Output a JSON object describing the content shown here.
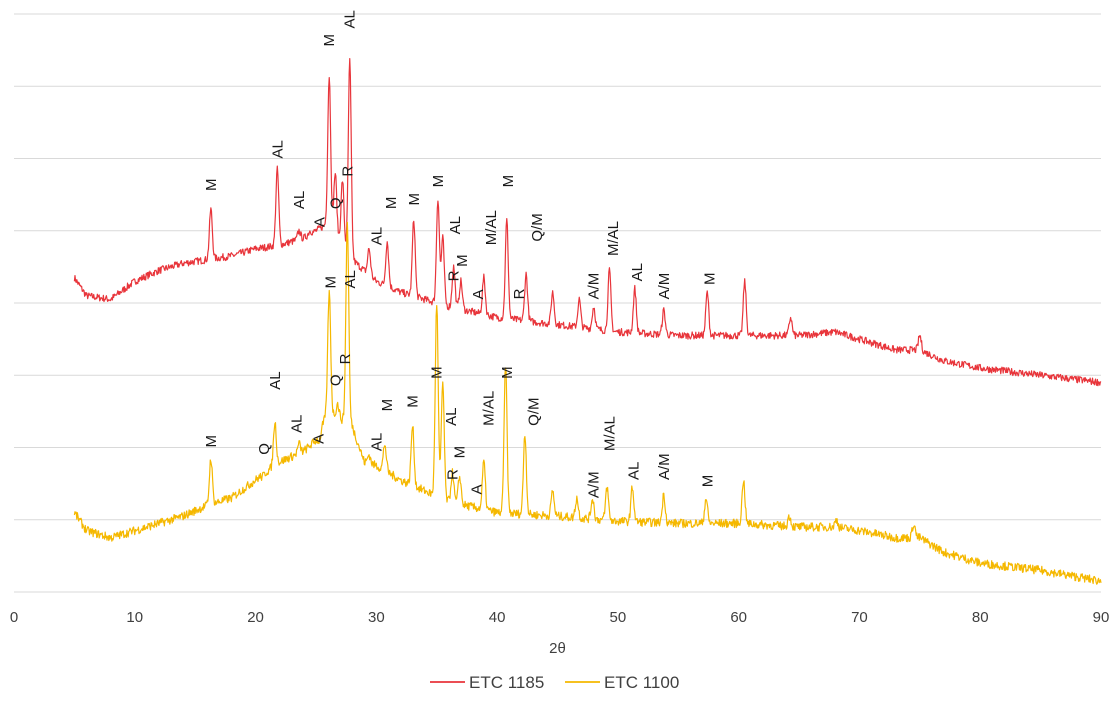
{
  "chart_data": {
    "type": "line",
    "xlabel": "2θ",
    "ylabel": "",
    "xlim": [
      0,
      90
    ],
    "ylim": [
      0,
      8
    ],
    "x_ticks": [
      0,
      10,
      20,
      30,
      40,
      50,
      60,
      70,
      80,
      90
    ],
    "y_ticks_shown": false,
    "grid": "horizontal",
    "legend_position": "bottom",
    "series": [
      {
        "name": "ETC 1185",
        "color": "#e8353b",
        "baseline_points": [
          [
            5,
            4.35
          ],
          [
            6,
            4.1
          ],
          [
            8,
            4.05
          ],
          [
            10,
            4.3
          ],
          [
            12,
            4.45
          ],
          [
            14,
            4.55
          ],
          [
            16,
            4.6
          ],
          [
            18,
            4.65
          ],
          [
            20,
            4.75
          ],
          [
            22,
            4.8
          ],
          [
            24,
            4.9
          ],
          [
            26,
            5.1
          ],
          [
            28,
            4.6
          ],
          [
            30,
            4.3
          ],
          [
            32,
            4.15
          ],
          [
            34,
            4.05
          ],
          [
            36,
            3.95
          ],
          [
            40,
            3.8
          ],
          [
            45,
            3.7
          ],
          [
            50,
            3.6
          ],
          [
            55,
            3.55
          ],
          [
            60,
            3.55
          ],
          [
            65,
            3.55
          ],
          [
            68,
            3.6
          ],
          [
            70,
            3.5
          ],
          [
            73,
            3.35
          ],
          [
            75,
            3.35
          ],
          [
            77,
            3.2
          ],
          [
            80,
            3.1
          ],
          [
            85,
            3.0
          ],
          [
            90,
            2.9
          ]
        ],
        "peaks": [
          [
            16.3,
            5.3
          ],
          [
            21.8,
            5.85
          ],
          [
            23.6,
            5.0
          ],
          [
            24.5,
            5.0
          ],
          [
            26.1,
            7.15
          ],
          [
            26.6,
            5.8
          ],
          [
            27.2,
            5.7
          ],
          [
            27.8,
            7.35
          ],
          [
            29.4,
            4.75
          ],
          [
            30.9,
            4.85
          ],
          [
            33.1,
            5.15
          ],
          [
            35.1,
            5.45
          ],
          [
            35.5,
            4.9
          ],
          [
            36.4,
            4.5
          ],
          [
            37.0,
            4.3
          ],
          [
            38.9,
            4.35
          ],
          [
            40.8,
            5.15
          ],
          [
            42.4,
            4.4
          ],
          [
            44.6,
            4.15
          ],
          [
            46.8,
            4.05
          ],
          [
            48.0,
            3.95
          ],
          [
            49.3,
            4.45
          ],
          [
            51.4,
            4.2
          ],
          [
            53.8,
            3.9
          ],
          [
            57.4,
            4.15
          ],
          [
            60.5,
            4.3
          ],
          [
            64.3,
            3.8
          ],
          [
            75.0,
            3.55
          ]
        ],
        "noise": 0.05
      },
      {
        "name": "ETC 1100",
        "color": "#f5b800",
        "baseline_points": [
          [
            5,
            1.1
          ],
          [
            6,
            0.85
          ],
          [
            8,
            0.75
          ],
          [
            10,
            0.85
          ],
          [
            12,
            0.95
          ],
          [
            14,
            1.05
          ],
          [
            16,
            1.2
          ],
          [
            18,
            1.3
          ],
          [
            20,
            1.55
          ],
          [
            22,
            1.8
          ],
          [
            24,
            1.95
          ],
          [
            25,
            2.1
          ],
          [
            26,
            2.5
          ],
          [
            28,
            2.3
          ],
          [
            29,
            1.8
          ],
          [
            30,
            1.75
          ],
          [
            32,
            1.55
          ],
          [
            34,
            1.4
          ],
          [
            36,
            1.25
          ],
          [
            40,
            1.1
          ],
          [
            45,
            1.05
          ],
          [
            50,
            0.98
          ],
          [
            55,
            0.95
          ],
          [
            60,
            0.95
          ],
          [
            65,
            0.9
          ],
          [
            68,
            0.9
          ],
          [
            70,
            0.85
          ],
          [
            73,
            0.75
          ],
          [
            75,
            0.75
          ],
          [
            77,
            0.55
          ],
          [
            80,
            0.4
          ],
          [
            85,
            0.3
          ],
          [
            90,
            0.15
          ]
        ],
        "peaks": [
          [
            16.3,
            1.85
          ],
          [
            20.6,
            1.6
          ],
          [
            21.6,
            2.35
          ],
          [
            23.6,
            2.05
          ],
          [
            25.3,
            2.1
          ],
          [
            26.1,
            4.15
          ],
          [
            26.8,
            2.6
          ],
          [
            27.6,
            5.1
          ],
          [
            29.4,
            1.9
          ],
          [
            30.7,
            2.05
          ],
          [
            33.0,
            2.3
          ],
          [
            35.0,
            4.0
          ],
          [
            35.5,
            2.9
          ],
          [
            36.3,
            1.65
          ],
          [
            36.9,
            1.6
          ],
          [
            38.9,
            1.8
          ],
          [
            40.7,
            3.15
          ],
          [
            42.3,
            2.2
          ],
          [
            44.6,
            1.4
          ],
          [
            46.6,
            1.3
          ],
          [
            47.9,
            1.3
          ],
          [
            49.1,
            1.45
          ],
          [
            51.2,
            1.45
          ],
          [
            53.8,
            1.35
          ],
          [
            57.3,
            1.3
          ],
          [
            60.4,
            1.55
          ],
          [
            64.2,
            1.05
          ],
          [
            68.1,
            1.0
          ],
          [
            74.5,
            0.95
          ]
        ],
        "noise": 0.06
      }
    ],
    "annotations_top": [
      {
        "text": "M",
        "x": 16.3,
        "y": 5.55
      },
      {
        "text": "AL",
        "x": 21.8,
        "y": 6.0
      },
      {
        "text": "AL",
        "x": 23.6,
        "y": 5.3
      },
      {
        "text": "A",
        "x": 25.3,
        "y": 5.05
      },
      {
        "text": "M",
        "x": 26.1,
        "y": 7.55
      },
      {
        "text": "Q",
        "x": 26.6,
        "y": 5.3
      },
      {
        "text": "R",
        "x": 27.6,
        "y": 5.75
      },
      {
        "text": "AL",
        "x": 27.8,
        "y": 7.8
      },
      {
        "text": "AL",
        "x": 30.0,
        "y": 4.8
      },
      {
        "text": "M",
        "x": 31.2,
        "y": 5.3
      },
      {
        "text": "M",
        "x": 33.1,
        "y": 5.35
      },
      {
        "text": "M",
        "x": 35.1,
        "y": 5.6
      },
      {
        "text": "AL",
        "x": 36.5,
        "y": 4.95
      },
      {
        "text": "M",
        "x": 37.1,
        "y": 4.5
      },
      {
        "text": "R",
        "x": 36.4,
        "y": 4.3
      },
      {
        "text": "A",
        "x": 38.4,
        "y": 4.05
      },
      {
        "text": "M/AL",
        "x": 39.5,
        "y": 4.8
      },
      {
        "text": "M",
        "x": 40.9,
        "y": 5.6
      },
      {
        "text": "R",
        "x": 41.8,
        "y": 4.05
      },
      {
        "text": "Q/M",
        "x": 43.3,
        "y": 4.85
      },
      {
        "text": "A/M",
        "x": 48.0,
        "y": 4.05
      },
      {
        "text": "M/AL",
        "x": 49.6,
        "y": 4.65
      },
      {
        "text": "AL",
        "x": 51.6,
        "y": 4.3
      },
      {
        "text": "A/M",
        "x": 53.8,
        "y": 4.05
      },
      {
        "text": "M",
        "x": 57.6,
        "y": 4.25
      }
    ],
    "annotations_bottom": [
      {
        "text": "M",
        "x": 16.3,
        "y": 2.0
      },
      {
        "text": "Q",
        "x": 20.7,
        "y": 1.9
      },
      {
        "text": "AL",
        "x": 21.6,
        "y": 2.8
      },
      {
        "text": "AL",
        "x": 23.4,
        "y": 2.2
      },
      {
        "text": "A",
        "x": 25.2,
        "y": 2.05
      },
      {
        "text": "M",
        "x": 26.2,
        "y": 4.2
      },
      {
        "text": "Q",
        "x": 26.6,
        "y": 2.85
      },
      {
        "text": "R",
        "x": 27.4,
        "y": 3.15
      },
      {
        "text": "AL",
        "x": 27.8,
        "y": 4.2
      },
      {
        "text": "AL",
        "x": 30.0,
        "y": 1.95
      },
      {
        "text": "M",
        "x": 30.9,
        "y": 2.5
      },
      {
        "text": "M",
        "x": 33.0,
        "y": 2.55
      },
      {
        "text": "M",
        "x": 35.0,
        "y": 2.95
      },
      {
        "text": "AL",
        "x": 36.2,
        "y": 2.3
      },
      {
        "text": "M",
        "x": 36.9,
        "y": 1.85
      },
      {
        "text": "R",
        "x": 36.3,
        "y": 1.55
      },
      {
        "text": "A",
        "x": 38.3,
        "y": 1.35
      },
      {
        "text": "M/AL",
        "x": 39.3,
        "y": 2.3
      },
      {
        "text": "M",
        "x": 40.8,
        "y": 2.95
      },
      {
        "text": "Q/M",
        "x": 43.0,
        "y": 2.3
      },
      {
        "text": "A/M",
        "x": 48.0,
        "y": 1.3
      },
      {
        "text": "M/AL",
        "x": 49.3,
        "y": 1.95
      },
      {
        "text": "AL",
        "x": 51.3,
        "y": 1.55
      },
      {
        "text": "A/M",
        "x": 53.8,
        "y": 1.55
      },
      {
        "text": "M",
        "x": 57.4,
        "y": 1.45
      }
    ]
  },
  "legend": {
    "items": [
      {
        "label": "ETC 1185",
        "color": "#e8353b"
      },
      {
        "label": "ETC 1100",
        "color": "#f5b800"
      }
    ]
  }
}
